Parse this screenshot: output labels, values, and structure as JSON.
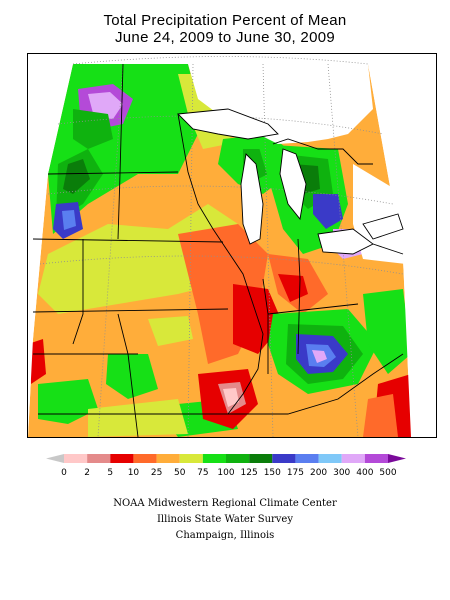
{
  "title": {
    "line1": "Total Precipitation Percent of Mean",
    "line2": "June 24, 2009 to June 30, 2009"
  },
  "legend": {
    "labels": [
      "0",
      "2",
      "5",
      "10",
      "25",
      "50",
      "75",
      "100",
      "125",
      "150",
      "175",
      "200",
      "300",
      "400",
      "500"
    ],
    "colors": [
      "#ffc8c8",
      "#e48a8a",
      "#e60000",
      "#ff6a2a",
      "#ffad3a",
      "#d8e83a",
      "#16e016",
      "#0fb20f",
      "#0a7d0a",
      "#3a3ac8",
      "#5a7ef0",
      "#7fc8f8",
      "#e0a8f8",
      "#b44ad8"
    ],
    "low_arrow_color": "#c8c8c8",
    "high_arrow_color": "#7a0a9a"
  },
  "credits": {
    "line1": "NOAA Midwestern Regional Climate Center",
    "line2": "Illinois State Water Survey",
    "line3": "Champaign, Illinois"
  },
  "colors": {
    "state_lines": "#000000",
    "grid_lines": "#909090"
  }
}
